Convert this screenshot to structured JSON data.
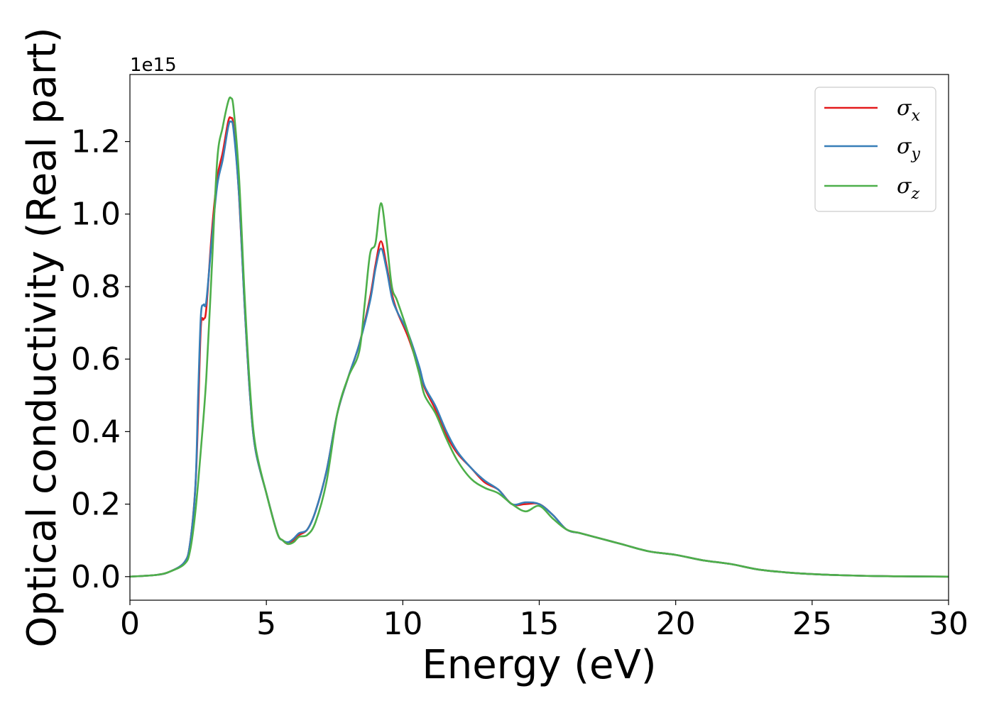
{
  "chart_data": {
    "type": "line",
    "xlabel": "Energy (eV)",
    "ylabel": "Optical conductivity (Real part)",
    "y_offset_label": "1e15",
    "xlim": [
      0,
      30
    ],
    "ylim": [
      -0.065,
      1.385
    ],
    "x_ticks": [
      0,
      5,
      10,
      15,
      20,
      25,
      30
    ],
    "x_tick_labels": [
      "0",
      "5",
      "10",
      "15",
      "20",
      "25",
      "30"
    ],
    "y_ticks": [
      0.0,
      0.2,
      0.4,
      0.6,
      0.8,
      1.0,
      1.2
    ],
    "y_tick_labels": [
      "0.0",
      "0.2",
      "0.4",
      "0.6",
      "0.8",
      "1.0",
      "1.2"
    ],
    "grid": false,
    "legend_position": "top-right",
    "series": [
      {
        "name": "σx",
        "label_main": "σ",
        "label_sub": "x",
        "color": "#e41a1c",
        "x": [
          0,
          1,
          1.5,
          2,
          2.2,
          2.4,
          2.5,
          2.6,
          2.7,
          2.8,
          3.0,
          3.2,
          3.4,
          3.6,
          3.7,
          3.8,
          4.0,
          4.2,
          4.4,
          4.6,
          5.0,
          5.4,
          5.6,
          5.8,
          6.0,
          6.2,
          6.5,
          6.8,
          7.2,
          7.6,
          8.0,
          8.4,
          8.8,
          9.0,
          9.2,
          9.4,
          9.6,
          9.8,
          10.2,
          10.6,
          10.8,
          11.2,
          11.6,
          12.0,
          12.5,
          13.0,
          13.5,
          14.0,
          14.5,
          15.0,
          15.5,
          16.0,
          16.5,
          17.0,
          18.0,
          19.0,
          20.0,
          21.0,
          22.0,
          23.0,
          24.0,
          25.0,
          26.0,
          27.0,
          28.0,
          30.0
        ],
        "y": [
          0.0,
          0.005,
          0.015,
          0.04,
          0.09,
          0.25,
          0.45,
          0.69,
          0.71,
          0.74,
          0.95,
          1.1,
          1.17,
          1.255,
          1.265,
          1.24,
          1.05,
          0.75,
          0.5,
          0.35,
          0.23,
          0.12,
          0.1,
          0.09,
          0.1,
          0.115,
          0.13,
          0.18,
          0.29,
          0.45,
          0.55,
          0.64,
          0.77,
          0.86,
          0.925,
          0.86,
          0.78,
          0.73,
          0.66,
          0.57,
          0.52,
          0.46,
          0.39,
          0.34,
          0.3,
          0.26,
          0.24,
          0.2,
          0.2,
          0.2,
          0.17,
          0.13,
          0.12,
          0.11,
          0.09,
          0.07,
          0.06,
          0.045,
          0.035,
          0.02,
          0.012,
          0.007,
          0.004,
          0.002,
          0.001,
          0.0
        ]
      },
      {
        "name": "σy",
        "label_main": "σ",
        "label_sub": "y",
        "color": "#377eb8",
        "x": [
          0,
          1,
          1.5,
          2,
          2.2,
          2.4,
          2.5,
          2.6,
          2.7,
          2.8,
          3.0,
          3.2,
          3.4,
          3.6,
          3.7,
          3.8,
          4.0,
          4.2,
          4.4,
          4.6,
          5.0,
          5.4,
          5.6,
          5.8,
          6.0,
          6.2,
          6.5,
          6.8,
          7.2,
          7.6,
          8.0,
          8.4,
          8.8,
          9.0,
          9.2,
          9.4,
          9.6,
          9.8,
          10.2,
          10.6,
          10.8,
          11.2,
          11.6,
          12.0,
          12.5,
          13.0,
          13.5,
          14.0,
          14.5,
          15.0,
          15.5,
          16.0,
          16.5,
          17.0,
          18.0,
          19.0,
          20.0,
          21.0,
          22.0,
          23.0,
          24.0,
          25.0,
          26.0,
          27.0,
          28.0,
          30.0
        ],
        "y": [
          0.0,
          0.005,
          0.015,
          0.04,
          0.09,
          0.25,
          0.5,
          0.72,
          0.75,
          0.76,
          0.93,
          1.08,
          1.15,
          1.24,
          1.255,
          1.23,
          1.05,
          0.75,
          0.5,
          0.35,
          0.23,
          0.12,
          0.1,
          0.095,
          0.105,
          0.12,
          0.13,
          0.18,
          0.29,
          0.45,
          0.55,
          0.64,
          0.76,
          0.85,
          0.905,
          0.85,
          0.77,
          0.73,
          0.67,
          0.58,
          0.525,
          0.47,
          0.4,
          0.345,
          0.3,
          0.265,
          0.24,
          0.2,
          0.205,
          0.2,
          0.17,
          0.13,
          0.12,
          0.11,
          0.09,
          0.07,
          0.06,
          0.045,
          0.035,
          0.02,
          0.012,
          0.007,
          0.004,
          0.002,
          0.001,
          0.0
        ]
      },
      {
        "name": "σz",
        "label_main": "σ",
        "label_sub": "z",
        "color": "#4daf4a",
        "x": [
          0,
          1,
          1.5,
          2,
          2.2,
          2.4,
          2.6,
          2.8,
          3.0,
          3.2,
          3.4,
          3.6,
          3.7,
          3.8,
          4.0,
          4.2,
          4.4,
          4.6,
          5.0,
          5.4,
          5.6,
          5.8,
          6.0,
          6.2,
          6.5,
          6.8,
          7.2,
          7.6,
          8.0,
          8.4,
          8.6,
          8.8,
          9.0,
          9.2,
          9.4,
          9.6,
          9.8,
          10.2,
          10.6,
          10.8,
          11.2,
          11.6,
          12.0,
          12.5,
          13.0,
          13.5,
          14.0,
          14.5,
          15.0,
          15.5,
          16.0,
          16.5,
          17.0,
          18.0,
          19.0,
          20.0,
          21.0,
          22.0,
          23.0,
          24.0,
          25.0,
          26.0,
          27.0,
          28.0,
          30.0
        ],
        "y": [
          0.0,
          0.005,
          0.015,
          0.035,
          0.07,
          0.18,
          0.35,
          0.55,
          0.85,
          1.15,
          1.24,
          1.31,
          1.32,
          1.29,
          1.1,
          0.78,
          0.52,
          0.36,
          0.23,
          0.12,
          0.1,
          0.09,
          0.095,
          0.11,
          0.115,
          0.15,
          0.26,
          0.45,
          0.55,
          0.62,
          0.75,
          0.89,
          0.92,
          1.03,
          0.93,
          0.8,
          0.76,
          0.67,
          0.56,
          0.5,
          0.45,
          0.38,
          0.32,
          0.27,
          0.245,
          0.23,
          0.2,
          0.18,
          0.195,
          0.16,
          0.13,
          0.12,
          0.11,
          0.09,
          0.07,
          0.06,
          0.045,
          0.035,
          0.02,
          0.012,
          0.007,
          0.004,
          0.002,
          0.001,
          0.0
        ]
      }
    ]
  }
}
